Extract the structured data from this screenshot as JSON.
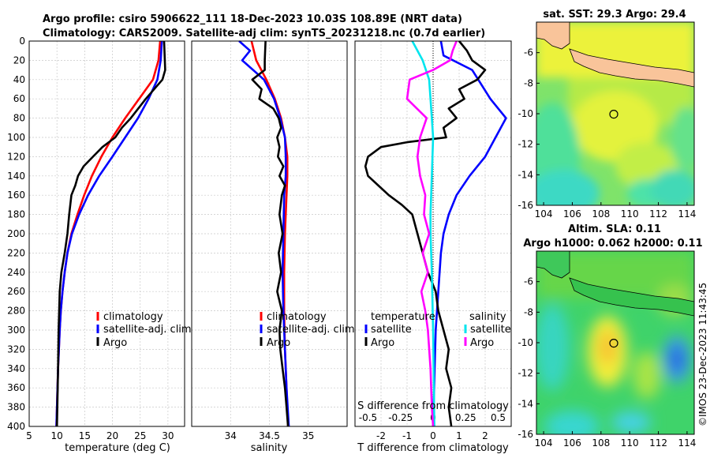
{
  "titles": {
    "line1": "Argo profile: csiro 5906622_111 18-Dec-2023 10.03S 108.89E (NRT data)",
    "line2": "Climatology: CARS2009. Satellite-adj clim: synTS_20231218.nc (0.7d earlier)"
  },
  "copyright": "©IMOS 23-Dec-2023 11:43:45",
  "colors": {
    "climatology": "#ff0000",
    "satellite": "#0000ff",
    "argo": "#000000",
    "salinity_satellite": "#00e5ee",
    "salinity_argo": "#ff00ff",
    "land": "#f9c49a"
  },
  "chart_data": [
    {
      "id": "temperature",
      "type": "line",
      "xlabel": "temperature (deg C)",
      "ylabel": "",
      "xlim": [
        5,
        33
      ],
      "ylim": [
        400,
        0
      ],
      "xticks": [
        "5",
        "10",
        "15",
        "20",
        "25",
        "30"
      ],
      "yticks": [
        "0",
        "20",
        "40",
        "60",
        "80",
        "100",
        "120",
        "140",
        "160",
        "180",
        "200",
        "220",
        "240",
        "260",
        "280",
        "300",
        "320",
        "340",
        "360",
        "380",
        "400"
      ],
      "legend": [
        "climatology",
        "satellite-adj. clim",
        "Argo"
      ],
      "series": [
        {
          "name": "climatology",
          "color": "#ff0000",
          "depth": [
            0,
            20,
            40,
            60,
            80,
            100,
            120,
            140,
            160,
            180,
            200,
            220,
            240,
            260,
            280,
            300,
            340,
            400
          ],
          "values": [
            28.6,
            28.3,
            27.3,
            24.8,
            22.3,
            20.0,
            18.0,
            16.3,
            14.9,
            13.7,
            12.6,
            11.9,
            11.4,
            11.0,
            10.7,
            10.5,
            10.2,
            9.9
          ]
        },
        {
          "name": "satellite-adj. clim",
          "color": "#0000ff",
          "depth": [
            0,
            20,
            40,
            60,
            80,
            100,
            120,
            140,
            160,
            180,
            200,
            220,
            240,
            260,
            280,
            300,
            340,
            400
          ],
          "values": [
            28.9,
            28.7,
            28.1,
            26.5,
            24.6,
            22.3,
            20.0,
            17.6,
            15.6,
            14.0,
            12.7,
            11.9,
            11.4,
            11.0,
            10.7,
            10.5,
            10.2,
            9.9
          ]
        },
        {
          "name": "Argo",
          "color": "#000000",
          "depth": [
            0,
            15,
            30,
            40,
            60,
            80,
            90,
            100,
            110,
            120,
            130,
            140,
            150,
            160,
            180,
            200,
            220,
            240,
            260,
            300,
            340,
            400
          ],
          "values": [
            29.3,
            29.4,
            29.5,
            29.0,
            26.0,
            23.3,
            21.7,
            20.5,
            18.2,
            16.5,
            14.8,
            13.8,
            13.3,
            12.6,
            12.2,
            11.9,
            11.4,
            10.8,
            10.5,
            10.3,
            10.2,
            10.0
          ]
        }
      ]
    },
    {
      "id": "salinity",
      "type": "line",
      "xlabel": "salinity",
      "xlim": [
        33.5,
        35.5
      ],
      "ylim": [
        400,
        0
      ],
      "xticks": [
        "34",
        "34.5",
        "35"
      ],
      "legend": [
        "climatology",
        "satellite-adj. clim",
        "Argo"
      ],
      "series": [
        {
          "name": "climatology",
          "color": "#ff0000",
          "depth": [
            0,
            20,
            40,
            60,
            80,
            100,
            120,
            140,
            160,
            200,
            240,
            280,
            320,
            360,
            400
          ],
          "values": [
            34.27,
            34.33,
            34.46,
            34.57,
            34.65,
            34.7,
            34.73,
            34.73,
            34.72,
            34.7,
            34.69,
            34.69,
            34.7,
            34.72,
            34.74
          ]
        },
        {
          "name": "satellite-adj. clim",
          "color": "#0000ff",
          "depth": [
            0,
            10,
            20,
            40,
            60,
            80,
            100,
            120,
            140,
            160,
            200,
            240,
            280,
            320,
            360,
            400
          ],
          "values": [
            34.11,
            34.25,
            34.15,
            34.43,
            34.56,
            34.64,
            34.7,
            34.71,
            34.71,
            34.69,
            34.68,
            34.67,
            34.68,
            34.7,
            34.72,
            34.75
          ]
        },
        {
          "name": "Argo",
          "color": "#000000",
          "depth": [
            0,
            20,
            30,
            40,
            50,
            60,
            70,
            80,
            90,
            100,
            110,
            120,
            130,
            140,
            150,
            160,
            180,
            200,
            220,
            240,
            260,
            280,
            300,
            320,
            340,
            360,
            380,
            400
          ],
          "values": [
            34.45,
            34.44,
            34.44,
            34.28,
            34.4,
            34.37,
            34.55,
            34.62,
            34.65,
            34.6,
            34.63,
            34.61,
            34.68,
            34.63,
            34.7,
            34.66,
            34.63,
            34.67,
            34.62,
            34.65,
            34.6,
            34.66,
            34.63,
            34.64,
            34.67,
            34.7,
            34.72,
            34.74
          ]
        }
      ]
    },
    {
      "id": "difference",
      "type": "line",
      "xlabel": "T difference from climatology",
      "xlabel_top": "S difference from climatology",
      "xlim": [
        -3,
        3
      ],
      "ylim": [
        400,
        0
      ],
      "xticks": [
        "-2",
        "-1",
        "0",
        "1",
        "2"
      ],
      "xticks_top": [
        "-0.5",
        "-0.25",
        "0",
        "0.25",
        "0.5"
      ],
      "legend_t": {
        "title": "temperature",
        "items": [
          "satellite",
          "Argo"
        ]
      },
      "legend_s": {
        "title": "salinity",
        "items": [
          "satellite",
          "Argo"
        ]
      },
      "series": [
        {
          "name": "temperature satellite",
          "color": "#0000ff",
          "depth": [
            0,
            15,
            30,
            60,
            80,
            100,
            120,
            140,
            160,
            180,
            200,
            220,
            260,
            300,
            350,
            400
          ],
          "values": [
            0.3,
            0.4,
            1.5,
            2.2,
            2.8,
            2.4,
            2.0,
            1.4,
            0.9,
            0.6,
            0.4,
            0.3,
            0.2,
            0.1,
            0.05,
            0.0
          ]
        },
        {
          "name": "temperature Argo",
          "color": "#000000",
          "depth": [
            0,
            10,
            20,
            30,
            40,
            50,
            60,
            70,
            80,
            90,
            100,
            105,
            110,
            120,
            130,
            140,
            150,
            160,
            170,
            180,
            200,
            220,
            240,
            260,
            280,
            300,
            320,
            340,
            360,
            380,
            400
          ],
          "values": [
            1.0,
            1.3,
            1.5,
            2.0,
            1.7,
            1.0,
            1.2,
            0.6,
            0.9,
            0.4,
            0.5,
            -1.0,
            -2.0,
            -2.5,
            -2.6,
            -2.5,
            -2.1,
            -1.7,
            -1.2,
            -0.8,
            -0.6,
            -0.4,
            -0.2,
            0.1,
            0.2,
            0.4,
            0.6,
            0.5,
            0.7,
            0.6,
            0.7
          ]
        },
        {
          "name": "salinity satellite",
          "color": "#00e5ee",
          "depth": [
            0,
            20,
            40,
            60,
            80,
            100,
            140,
            180,
            200,
            240,
            300,
            400
          ],
          "values": [
            -0.16,
            -0.08,
            -0.03,
            -0.02,
            -0.01,
            0.0,
            -0.01,
            -0.02,
            -0.02,
            -0.01,
            0.0,
            0.01
          ]
        },
        {
          "name": "salinity Argo",
          "color": "#ff00ff",
          "depth": [
            0,
            10,
            20,
            30,
            40,
            60,
            80,
            100,
            120,
            140,
            160,
            180,
            200,
            220,
            240,
            260,
            280,
            300,
            340,
            380,
            400
          ],
          "values": [
            0.18,
            0.15,
            0.13,
            0.0,
            -0.18,
            -0.2,
            -0.05,
            -0.1,
            -0.12,
            -0.1,
            -0.06,
            -0.07,
            -0.03,
            -0.08,
            -0.04,
            -0.09,
            -0.06,
            -0.04,
            -0.02,
            -0.01,
            0.0
          ]
        }
      ]
    },
    {
      "id": "sst_map",
      "type": "heatmap",
      "title": "sat. SST: 29.3 Argo: 29.4",
      "xlim": [
        103.5,
        114.5
      ],
      "ylim": [
        -16,
        -4
      ],
      "xticks": [
        "104",
        "106",
        "108",
        "110",
        "112",
        "114"
      ],
      "yticks": [
        "-6",
        "-8",
        "-10",
        "-12",
        "-14",
        "-16"
      ],
      "marker": {
        "lon": 108.89,
        "lat": -10.03
      }
    },
    {
      "id": "sla_map",
      "type": "heatmap",
      "title": "Altim. SLA: 0.11",
      "subtitle": "Argo h1000: 0.062 h2000: 0.11",
      "xlim": [
        103.5,
        114.5
      ],
      "ylim": [
        -16,
        -4
      ],
      "xticks": [
        "104",
        "106",
        "108",
        "110",
        "112",
        "114"
      ],
      "yticks": [
        "-6",
        "-8",
        "-10",
        "-12",
        "-14",
        "-16"
      ],
      "marker": {
        "lon": 108.89,
        "lat": -10.03
      }
    }
  ]
}
